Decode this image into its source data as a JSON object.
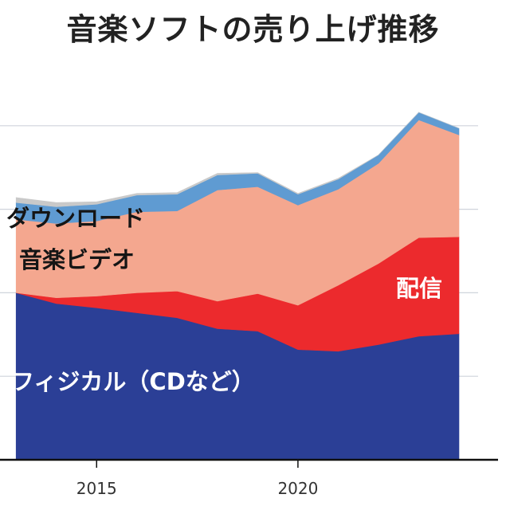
{
  "title": "音楽ソフトの売り上げ推移",
  "chart_data": {
    "type": "area",
    "stacked": true,
    "title": "音楽ソフトの売り上げ推移",
    "x": [
      2013,
      2014,
      2015,
      2016,
      2017,
      2018,
      2019,
      2020,
      2021,
      2022,
      2023,
      2024
    ],
    "xlim": [
      2012.6,
      2024.0
    ],
    "ylim": [
      0,
      4.17
    ],
    "x_ticks": [
      "2015",
      "2020"
    ],
    "grid": true,
    "legend": "none",
    "series": [
      {
        "name": "フィジカル（CDなど）",
        "color": "#2b3f96",
        "values": [
          2.0,
          1.87,
          1.82,
          1.76,
          1.7,
          1.57,
          1.54,
          1.32,
          1.3,
          1.38,
          1.48,
          1.51
        ]
      },
      {
        "name": "配信",
        "color": "#ec2a2d",
        "values": [
          0.0,
          0.07,
          0.14,
          0.24,
          0.32,
          0.33,
          0.45,
          0.53,
          0.79,
          0.97,
          1.18,
          1.16
        ]
      },
      {
        "name": "音楽ビデオ",
        "color": "#f4a78f",
        "values": [
          0.88,
          0.89,
          0.9,
          0.97,
          0.96,
          1.33,
          1.28,
          1.2,
          1.15,
          1.2,
          1.41,
          1.22
        ]
      },
      {
        "name": "ダウンロード",
        "color": "#5f9bd2",
        "values": [
          0.2,
          0.2,
          0.2,
          0.2,
          0.2,
          0.18,
          0.16,
          0.13,
          0.12,
          0.1,
          0.09,
          0.08
        ]
      },
      {
        "name": "",
        "color": "#c9c9c9",
        "values": [
          0.06,
          0.05,
          0.03,
          0.02,
          0.02,
          0.02,
          0.01,
          0.01,
          0.01,
          0.0,
          0.0,
          0.0
        ]
      }
    ]
  },
  "labels": {
    "download": "ダウンロード",
    "video": "音楽ビデオ",
    "streaming": "配信",
    "physical": "フィジカル（CDなど）"
  }
}
